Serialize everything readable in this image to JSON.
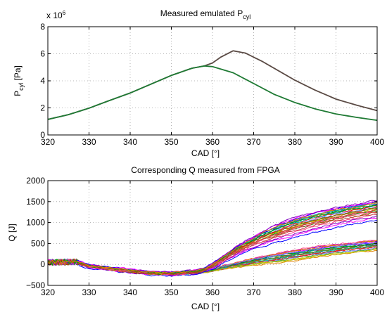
{
  "chart_data": [
    {
      "type": "line",
      "title": "Measured emulated P",
      "title_sub": "cyl",
      "xlabel": "CAD [°]",
      "ylabel_main": "P",
      "ylabel_sub": "cyl",
      "ylabel_unit": " [Pa]",
      "exponent_base": "x 10",
      "exponent_power": "6",
      "xlim": [
        320,
        400
      ],
      "ylim": [
        0,
        8
      ],
      "xticks": [
        "320",
        "330",
        "340",
        "350",
        "360",
        "370",
        "380",
        "390",
        "400"
      ],
      "yticks": [
        "0",
        "2",
        "4",
        "6",
        "8"
      ],
      "grid": true,
      "series": [
        {
          "color": "#5a4a44",
          "x": [
            320,
            325,
            330,
            335,
            340,
            345,
            350,
            355,
            358,
            360,
            362,
            365,
            368,
            372,
            376,
            380,
            385,
            390,
            395,
            400
          ],
          "y": [
            1.15,
            1.5,
            1.98,
            2.55,
            3.1,
            3.75,
            4.4,
            4.93,
            5.1,
            5.32,
            5.75,
            6.22,
            6.05,
            5.45,
            4.75,
            4.05,
            3.3,
            2.65,
            2.2,
            1.8
          ]
        },
        {
          "color": "#1f7a34",
          "x": [
            320,
            325,
            330,
            335,
            340,
            345,
            350,
            355,
            358,
            360,
            365,
            370,
            375,
            380,
            385,
            390,
            395,
            400
          ],
          "y": [
            1.15,
            1.5,
            1.98,
            2.55,
            3.1,
            3.75,
            4.4,
            4.93,
            5.1,
            5.05,
            4.6,
            3.8,
            3.0,
            2.4,
            1.92,
            1.55,
            1.3,
            1.08
          ]
        }
      ]
    },
    {
      "type": "line",
      "title": "Corresponding Q measured from FPGA",
      "xlabel": "CAD [°]",
      "ylabel": "Q [J]",
      "xlim": [
        320,
        400
      ],
      "ylim": [
        -500,
        2000
      ],
      "xticks": [
        "320",
        "330",
        "340",
        "350",
        "360",
        "370",
        "380",
        "390",
        "400"
      ],
      "yticks": [
        "−500",
        "0",
        "500",
        "1000",
        "1500",
        "2000"
      ],
      "grid": true,
      "upper_band": {
        "x": [
          320,
          327,
          330,
          335,
          340,
          345,
          350,
          355,
          358,
          360,
          363,
          366,
          370,
          375,
          380,
          385,
          390,
          395,
          400
        ],
        "y": [
          50,
          60,
          -30,
          -90,
          -150,
          -200,
          -210,
          -180,
          -120,
          -20,
          180,
          360,
          570,
          790,
          960,
          1090,
          1200,
          1290,
          1370
        ]
      },
      "lower_band": {
        "x": [
          320,
          327,
          330,
          335,
          340,
          345,
          350,
          355,
          358,
          360,
          363,
          366,
          370,
          375,
          380,
          385,
          390,
          395,
          400
        ],
        "y": [
          50,
          60,
          -30,
          -90,
          -150,
          -200,
          -215,
          -200,
          -170,
          -130,
          -60,
          0,
          80,
          160,
          240,
          310,
          370,
          420,
          470
        ]
      },
      "colors": [
        "#0000ff",
        "#ff0000",
        "#00a000",
        "#ff00ff",
        "#00c0c0",
        "#e08000",
        "#8000c0",
        "#008080",
        "#c0c000",
        "#ff4080",
        "#4040c0",
        "#40a040",
        "#c04040",
        "#00c080",
        "#8080ff",
        "#a05000"
      ],
      "upper_offsets": [
        -320,
        -260,
        -220,
        -180,
        -150,
        -120,
        -90,
        -60,
        -40,
        -20,
        0,
        20,
        40,
        60,
        80,
        100,
        120,
        140,
        160,
        -100,
        -70,
        -30,
        50,
        90
      ],
      "lower_offsets": [
        -140,
        -110,
        -90,
        -70,
        -50,
        -30,
        -10,
        10,
        30,
        50,
        70,
        90,
        110,
        -60,
        0,
        40,
        80,
        -120,
        -20,
        60
      ]
    }
  ]
}
